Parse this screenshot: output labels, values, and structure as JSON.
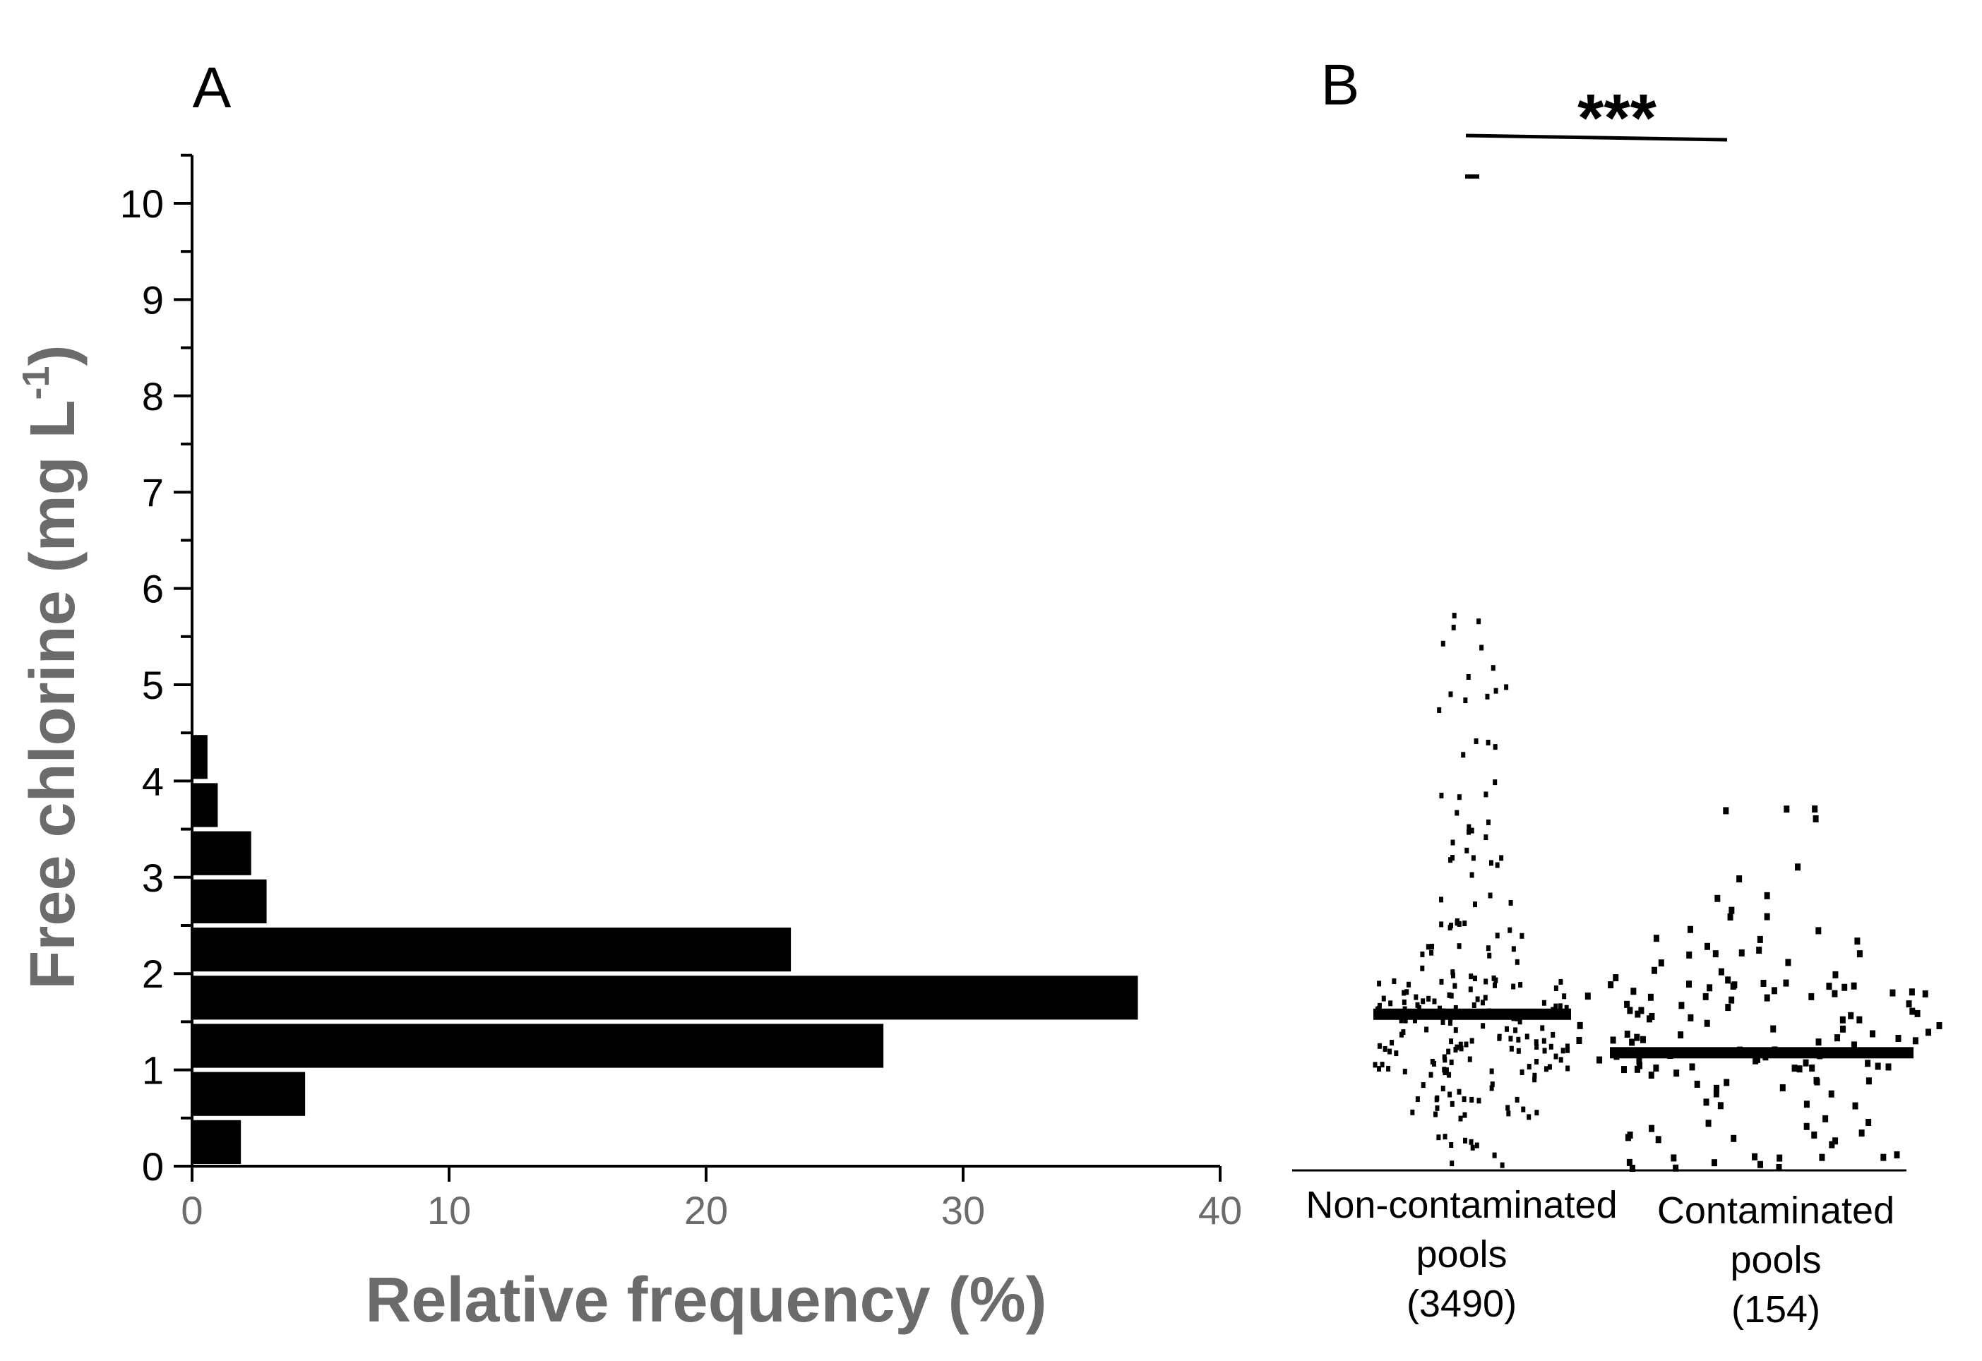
{
  "chart_data": [
    {
      "panel": "A",
      "type": "bar",
      "orientation": "horizontal",
      "panel_label": "A",
      "xlabel": "Relative frequency (%)",
      "ylabel_main": "Free chlorine (mg L",
      "ylabel_sup": "-1",
      "ylabel_close": ")",
      "xlim": [
        0,
        40
      ],
      "ylim": [
        0,
        10.5
      ],
      "x_ticks": [
        0,
        10,
        20,
        30,
        40
      ],
      "y_ticks": [
        0,
        1,
        2,
        3,
        4,
        5,
        6,
        7,
        8,
        9,
        10
      ],
      "bins": [
        {
          "from": 0.0,
          "to": 0.5,
          "value": 1.9
        },
        {
          "from": 0.5,
          "to": 1.0,
          "value": 4.4
        },
        {
          "from": 1.0,
          "to": 1.5,
          "value": 26.9
        },
        {
          "from": 1.5,
          "to": 2.0,
          "value": 36.8
        },
        {
          "from": 2.0,
          "to": 2.5,
          "value": 23.3
        },
        {
          "from": 2.5,
          "to": 3.0,
          "value": 2.9
        },
        {
          "from": 3.0,
          "to": 3.5,
          "value": 2.3
        },
        {
          "from": 3.5,
          "to": 4.0,
          "value": 1.0
        },
        {
          "from": 4.0,
          "to": 4.5,
          "value": 0.6
        }
      ]
    },
    {
      "panel": "B",
      "type": "scatter",
      "subtype": "dot-plot",
      "panel_label": "B",
      "significance": "***",
      "ylim": [
        0,
        10.5
      ],
      "groups": [
        {
          "name_line1": "Non-contaminated",
          "name_line2": "pools",
          "n_label": "(3490)",
          "n": 3490,
          "median": 1.6,
          "max": 10.3,
          "distribution": [
            {
              "from": 0.0,
              "to": 0.5,
              "count": 10
            },
            {
              "from": 0.5,
              "to": 1.0,
              "count": 28
            },
            {
              "from": 1.0,
              "to": 1.5,
              "count": 60
            },
            {
              "from": 1.5,
              "to": 2.0,
              "count": 62
            },
            {
              "from": 2.0,
              "to": 2.5,
              "count": 16
            },
            {
              "from": 2.5,
              "to": 3.0,
              "count": 12
            },
            {
              "from": 3.0,
              "to": 3.5,
              "count": 10
            },
            {
              "from": 3.5,
              "to": 4.0,
              "count": 8
            },
            {
              "from": 4.0,
              "to": 5.0,
              "count": 10
            },
            {
              "from": 5.0,
              "to": 6.2,
              "count": 8
            }
          ],
          "outliers": [
            10.3
          ]
        },
        {
          "name_line1": "Contaminated",
          "name_line2": "pools",
          "n_label": "(154)",
          "n": 154,
          "median": 1.2,
          "max": 3.8,
          "distribution": [
            {
              "from": 0.0,
              "to": 0.5,
              "count": 24
            },
            {
              "from": 0.5,
              "to": 1.0,
              "count": 16
            },
            {
              "from": 1.0,
              "to": 1.5,
              "count": 44
            },
            {
              "from": 1.5,
              "to": 2.0,
              "count": 40
            },
            {
              "from": 2.0,
              "to": 2.5,
              "count": 16
            },
            {
              "from": 2.5,
              "to": 3.0,
              "count": 5
            },
            {
              "from": 3.0,
              "to": 3.5,
              "count": 2
            },
            {
              "from": 3.5,
              "to": 4.0,
              "count": 4
            }
          ],
          "outliers": []
        }
      ]
    }
  ]
}
